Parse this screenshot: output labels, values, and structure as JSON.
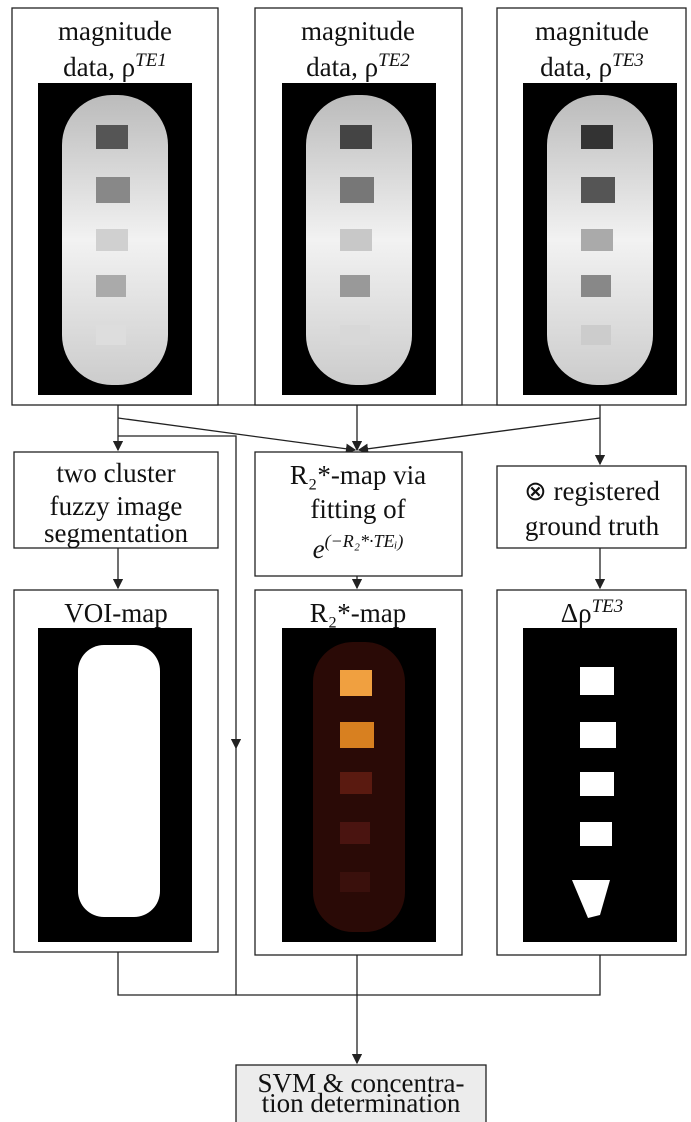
{
  "top": [
    {
      "line1": "magnitude",
      "line2": "data, ρ",
      "sup": "TE1"
    },
    {
      "line1": "magnitude",
      "line2": "data, ρ",
      "sup": "TE2"
    },
    {
      "line1": "magnitude",
      "line2": "data, ρ",
      "sup": "TE3"
    }
  ],
  "process": [
    {
      "lines": [
        "two cluster",
        "fuzzy image",
        "segmentation"
      ]
    },
    {
      "lines": [
        "R₂*-map via",
        "fitting of"
      ],
      "formula": "e",
      "formula_sup": "(−R₂*·TEᵢ)"
    },
    {
      "lines": [
        "⊗ registered",
        "ground truth"
      ]
    }
  ],
  "maps": [
    {
      "title": "VOI-map"
    },
    {
      "title": "R₂*-map"
    },
    {
      "title": "Δρ",
      "sup": "TE3"
    }
  ],
  "final": {
    "lines": [
      "SVM & concentra-",
      "tion determination"
    ]
  }
}
